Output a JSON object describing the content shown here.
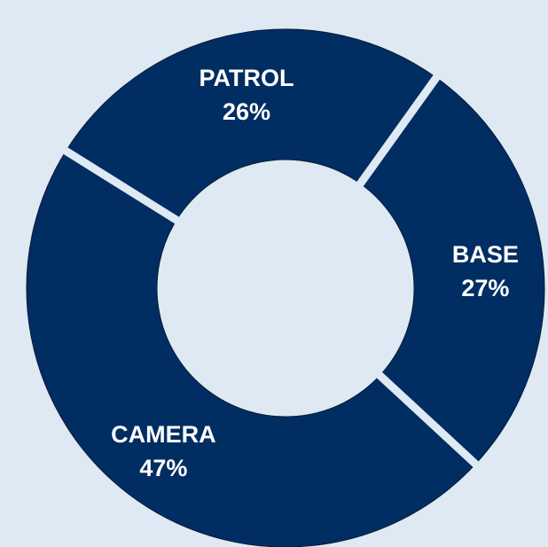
{
  "chart_data": {
    "type": "donut",
    "slices": [
      {
        "label": "PATROL",
        "value": 26,
        "value_label": "26%"
      },
      {
        "label": "BASE",
        "value": 27,
        "value_label": "27%"
      },
      {
        "label": "CAMERA",
        "value": 47,
        "value_label": "47%"
      }
    ],
    "colors": {
      "background": "#dfe9f3",
      "slice_fill": "#002d62",
      "slice_edge": "#0a1a33",
      "gap": "#dfe9f3",
      "label_text": "#ffffff"
    }
  }
}
